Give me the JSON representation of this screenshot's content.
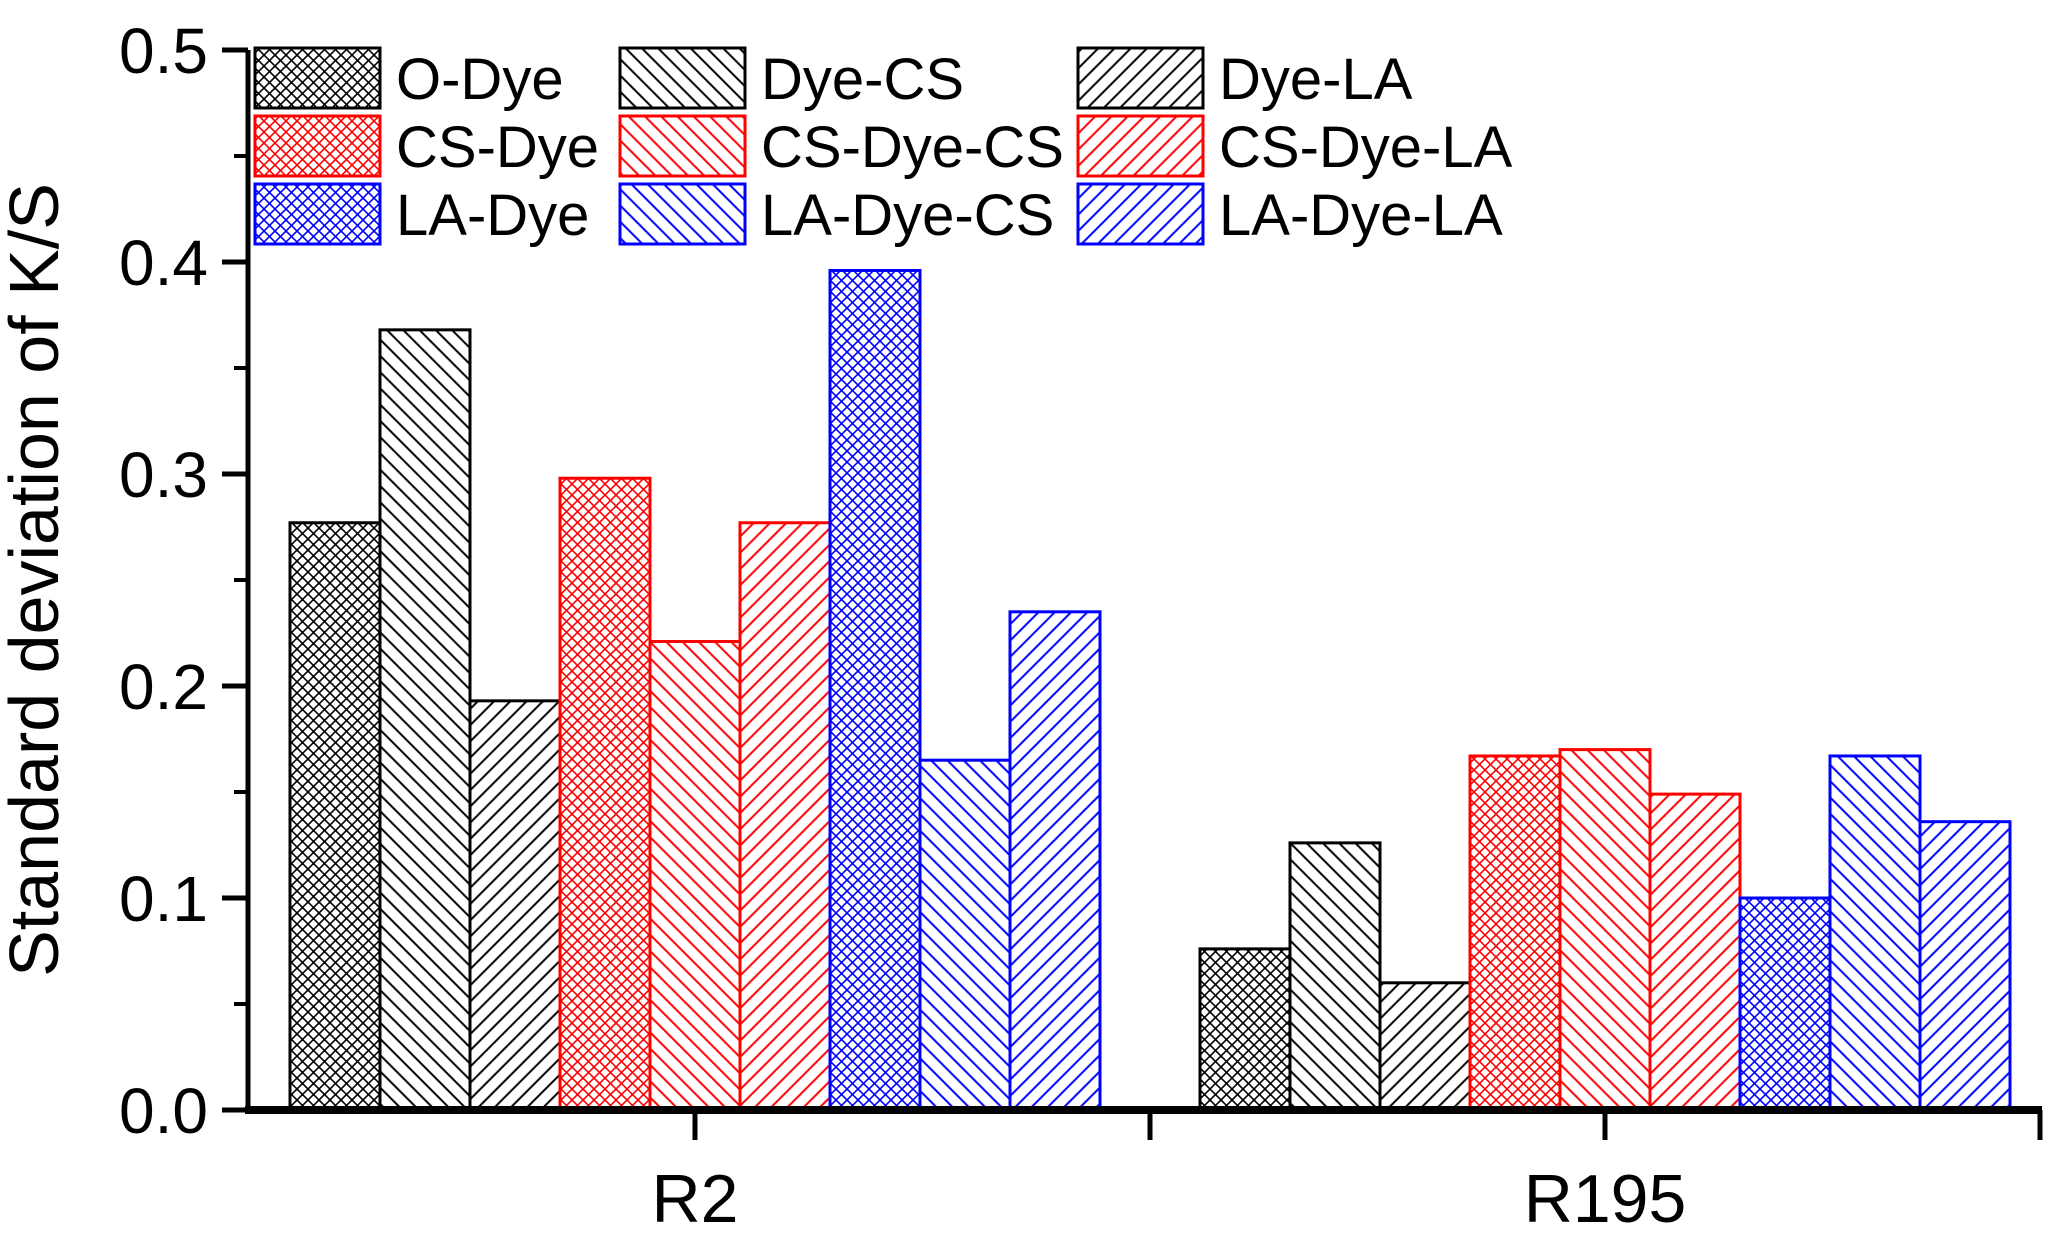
{
  "figure": {
    "background": "#ffffff",
    "axis_color": "#000000"
  },
  "chart_data": {
    "type": "bar",
    "title": "",
    "xlabel": "",
    "ylabel": "Standard deviation of K/S",
    "categories": [
      "R2",
      "R195"
    ],
    "ylim": [
      0.0,
      0.5
    ],
    "ytick_step": 0.1,
    "ytick_minor_step": 0.05,
    "ytick_labels": [
      "0.0",
      "0.1",
      "0.2",
      "0.3",
      "0.4",
      "0.5"
    ],
    "grid": false,
    "legend_position": "top-left-inside",
    "legend_rows": [
      [
        "O-Dye",
        "Dye-CS",
        "Dye-LA"
      ],
      [
        "CS-Dye",
        "CS-Dye-CS",
        "CS-Dye-LA"
      ],
      [
        "LA-Dye",
        "LA-Dye-CS",
        "LA-Dye-LA"
      ]
    ],
    "series": [
      {
        "name": "O-Dye",
        "color": "#000000",
        "hatch": "cross",
        "values": [
          0.277,
          0.076
        ]
      },
      {
        "name": "Dye-CS",
        "color": "#000000",
        "hatch": "fwd",
        "values": [
          0.368,
          0.126
        ]
      },
      {
        "name": "Dye-LA",
        "color": "#000000",
        "hatch": "back",
        "values": [
          0.193,
          0.06
        ]
      },
      {
        "name": "CS-Dye",
        "color": "#ff0000",
        "hatch": "cross",
        "values": [
          0.298,
          0.167
        ]
      },
      {
        "name": "CS-Dye-CS",
        "color": "#ff0000",
        "hatch": "fwd",
        "values": [
          0.221,
          0.17
        ]
      },
      {
        "name": "CS-Dye-LA",
        "color": "#ff0000",
        "hatch": "back",
        "values": [
          0.277,
          0.149
        ]
      },
      {
        "name": "LA-Dye",
        "color": "#0000ff",
        "hatch": "cross",
        "values": [
          0.396,
          0.1
        ]
      },
      {
        "name": "LA-Dye-CS",
        "color": "#0000ff",
        "hatch": "fwd",
        "values": [
          0.165,
          0.167
        ]
      },
      {
        "name": "LA-Dye-LA",
        "color": "#0000ff",
        "hatch": "back",
        "values": [
          0.235,
          0.136
        ]
      }
    ]
  }
}
